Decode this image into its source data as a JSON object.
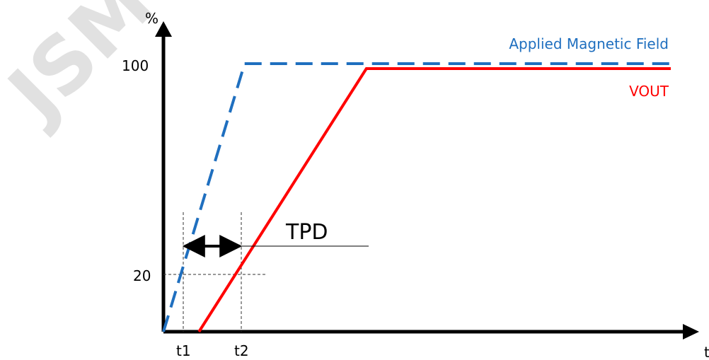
{
  "watermark": {
    "text": "JSM"
  },
  "chart_data": {
    "type": "line",
    "title": "",
    "xlabel": "t",
    "ylabel": "%",
    "y_ticks": [
      "100",
      "20"
    ],
    "x_ticks": [
      "t1",
      "t2"
    ],
    "series": [
      {
        "name": "Applied Magnetic Field",
        "color": "#1f6fbf",
        "style": "dashed",
        "points": [
          [
            0,
            0
          ],
          [
            0.16,
            100
          ],
          [
            1.0,
            100
          ]
        ]
      },
      {
        "name": "VOUT",
        "color": "#ff0000",
        "style": "solid",
        "points": [
          [
            0.07,
            0
          ],
          [
            0.4,
            100
          ],
          [
            1.0,
            100
          ]
        ]
      }
    ],
    "annotations": [
      {
        "label": "TPD",
        "from": "t1",
        "to": "t2",
        "level": 20
      }
    ],
    "grid": false
  }
}
